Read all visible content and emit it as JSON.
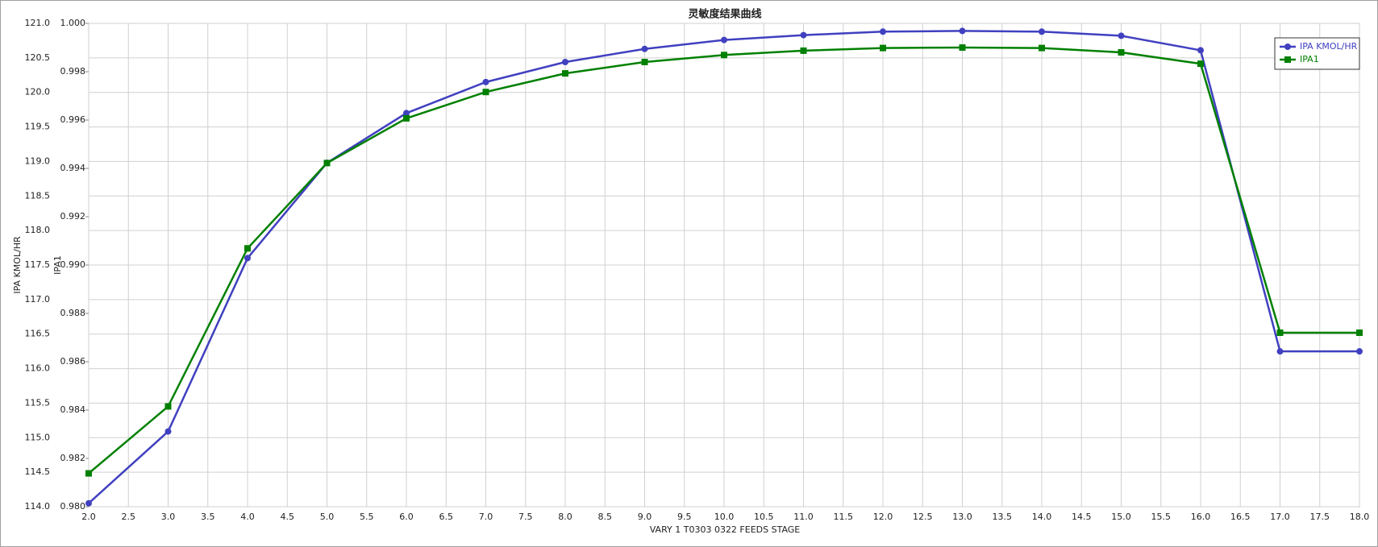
{
  "chart_data": {
    "type": "line",
    "title": "灵敏度结果曲线",
    "x_label": "VARY   1 T0303 0322 FEEDS STAGE",
    "y_label": "IPA KMOL/HR",
    "y2_label": "IPA1",
    "x": [
      2,
      3,
      4,
      5,
      6,
      7,
      8,
      9,
      10,
      11,
      12,
      13,
      14,
      15,
      16,
      17,
      18
    ],
    "series": [
      {
        "name": "IPA KMOL/HR",
        "color": "#4040c0",
        "marker": "circle",
        "values": [
          114.05,
          115.09,
          117.6,
          118.98,
          119.7,
          120.15,
          120.44,
          120.63,
          120.76,
          120.83,
          120.88,
          120.89,
          120.88,
          120.82,
          120.61,
          116.25,
          116.25
        ]
      },
      {
        "name": "IPA1",
        "color": "#008000",
        "marker": "square",
        "axis": "y2",
        "values": [
          0.98138,
          0.98415,
          0.99069,
          0.99422,
          0.99607,
          0.99716,
          0.99793,
          0.9984,
          0.99869,
          0.99887,
          0.99898,
          0.999,
          0.99898,
          0.9988,
          0.99833,
          0.9872,
          0.9872
        ]
      }
    ],
    "xlim": [
      2,
      18
    ],
    "xticks": [
      {
        "value": 2,
        "label": "2.0"
      },
      2.5,
      {
        "value": 3,
        "label": "3.0"
      },
      3.5,
      {
        "value": 4,
        "label": "4.0"
      },
      4.5,
      {
        "value": 5,
        "label": "5.0"
      },
      5.5,
      {
        "value": 6,
        "label": "6.0"
      },
      6.5,
      {
        "value": 7,
        "label": "7.0"
      },
      7.5,
      {
        "value": 8,
        "label": "8.0"
      },
      8.5,
      {
        "value": 9,
        "label": "9.0"
      },
      9.5,
      {
        "value": 10,
        "label": "10.0"
      },
      10.5,
      {
        "value": 11,
        "label": "11.0"
      },
      11.5,
      {
        "value": 12,
        "label": "12.0"
      },
      12.5,
      {
        "value": 13,
        "label": "13.0"
      },
      13.5,
      {
        "value": 14,
        "label": "14.0"
      },
      14.5,
      {
        "value": 15,
        "label": "15.0"
      },
      15.5,
      {
        "value": 16,
        "label": "16.0"
      },
      16.5,
      {
        "value": 17,
        "label": "17.0"
      },
      17.5,
      {
        "value": 18,
        "label": "18.0"
      }
    ],
    "ylim": [
      114,
      121
    ],
    "yticks": [
      {
        "value": 114,
        "label": "114.0"
      },
      114.5,
      {
        "value": 115,
        "label": "115.0"
      },
      115.5,
      {
        "value": 116,
        "label": "116.0"
      },
      116.5,
      {
        "value": 117,
        "label": "117.0"
      },
      117.5,
      {
        "value": 118,
        "label": "118.0"
      },
      118.5,
      {
        "value": 119,
        "label": "119.0"
      },
      119.5,
      {
        "value": 120,
        "label": "120.0"
      },
      120.5,
      {
        "value": 121,
        "label": "121.0"
      }
    ],
    "y2lim": [
      0.98,
      1.0
    ],
    "y2ticks": [
      {
        "value": 0.98,
        "label": "0.980"
      },
      0.982,
      0.984,
      0.986,
      0.988,
      {
        "value": 0.99,
        "label": "0.990"
      },
      0.992,
      0.994,
      0.996,
      0.998,
      {
        "value": 1.0,
        "label": "1.000"
      }
    ],
    "grid": true,
    "legend": "top-right"
  }
}
